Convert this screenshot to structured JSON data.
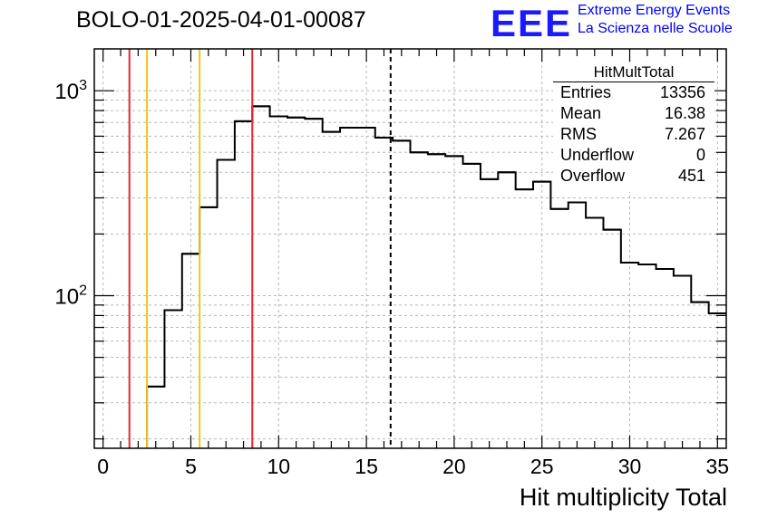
{
  "header": {
    "run_title": "BOLO-01-2025-04-01-00087",
    "logo_text": "EEE",
    "logo_line1": "Extreme Energy Events",
    "logo_line2": "La Scienza nelle Scuole"
  },
  "stats_box": {
    "title": "HitMultTotal",
    "rows": [
      {
        "key": "Entries",
        "value": "13356"
      },
      {
        "key": "Mean",
        "value": "16.38"
      },
      {
        "key": "RMS",
        "value": "7.267"
      },
      {
        "key": "Underflow",
        "value": "0"
      },
      {
        "key": "Overflow",
        "value": "451"
      }
    ]
  },
  "chart_data": {
    "type": "bar",
    "histogram": true,
    "title": "BOLO-01-2025-04-01-00087",
    "xlabel": "Hit multiplicity Total",
    "ylabel": "",
    "xlim": [
      -0.5,
      35.5
    ],
    "ylim": [
      18,
      1600
    ],
    "ylog": true,
    "grid": true,
    "bin_width": 1,
    "bin_centers": [
      0,
      1,
      2,
      3,
      4,
      5,
      6,
      7,
      8,
      9,
      10,
      11,
      12,
      13,
      14,
      15,
      16,
      17,
      18,
      19,
      20,
      21,
      22,
      23,
      24,
      25,
      26,
      27,
      28,
      29,
      30,
      31,
      32,
      33,
      34,
      35
    ],
    "values": [
      0,
      0,
      0,
      36,
      85,
      160,
      270,
      460,
      710,
      840,
      750,
      740,
      730,
      630,
      660,
      660,
      590,
      570,
      500,
      490,
      480,
      440,
      370,
      400,
      330,
      360,
      265,
      285,
      240,
      210,
      145,
      142,
      135,
      125,
      93,
      82
    ],
    "x_ticks": [
      0,
      5,
      10,
      15,
      20,
      25,
      30,
      35
    ],
    "y_tick_labels": [
      "10^2",
      "10^3"
    ],
    "y_ticks": [
      100,
      1000
    ],
    "vertical_lines": [
      {
        "x": 1.5,
        "color": "#e8262d",
        "style": "solid"
      },
      {
        "x": 2.5,
        "color": "#f0c419",
        "style": "solid"
      },
      {
        "x": 5.5,
        "color": "#f0c419",
        "style": "solid"
      },
      {
        "x": 8.5,
        "color": "#e8262d",
        "style": "solid"
      },
      {
        "x": 16.38,
        "color": "#000000",
        "style": "dashed"
      }
    ],
    "line_color": "#000000"
  }
}
